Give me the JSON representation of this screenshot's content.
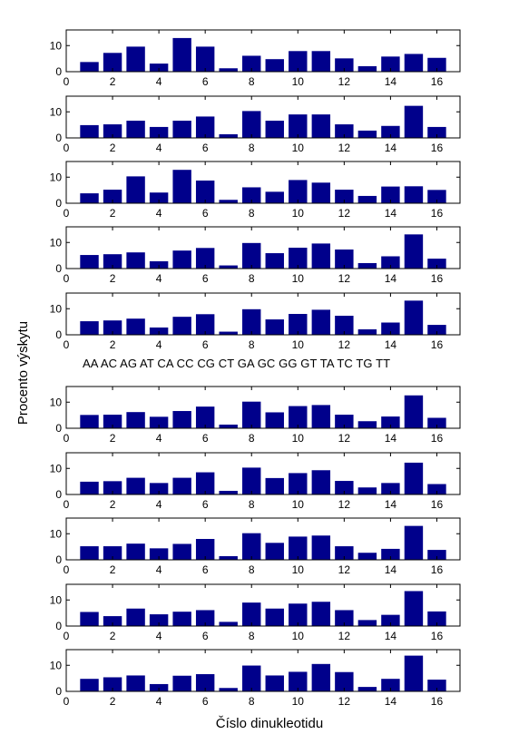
{
  "ylabel": "Procento  výskytu",
  "xlabel": "Číslo dinukleotidu",
  "dinucleotide_labels": "AA AC AG AT CA CC CG CT GA GC GG GT TA TC TG TT",
  "bar_color": "#00008b",
  "chart_data": [
    {
      "type": "bar",
      "x": [
        1,
        2,
        3,
        4,
        5,
        6,
        7,
        8,
        9,
        10,
        11,
        12,
        13,
        14,
        15,
        16
      ],
      "values": [
        3.7,
        7.2,
        9.6,
        3.1,
        12.9,
        9.6,
        1.3,
        6.1,
        4.8,
        7.9,
        7.9,
        5.1,
        2.1,
        5.8,
        6.8,
        5.3
      ],
      "ylim": [
        0,
        16
      ],
      "xlim": [
        0,
        17
      ],
      "xticks": [
        0,
        2,
        4,
        6,
        8,
        10,
        12,
        14,
        16
      ],
      "yticks": [
        0,
        10
      ]
    },
    {
      "type": "bar",
      "x": [
        1,
        2,
        3,
        4,
        5,
        6,
        7,
        8,
        9,
        10,
        11,
        12,
        13,
        14,
        15,
        16
      ],
      "values": [
        4.9,
        5.2,
        6.6,
        4.2,
        6.6,
        8.2,
        1.4,
        10.3,
        6.6,
        9.0,
        9.0,
        5.2,
        2.8,
        4.6,
        12.3,
        4.2
      ],
      "ylim": [
        0,
        16
      ],
      "xlim": [
        0,
        17
      ],
      "xticks": [
        0,
        2,
        4,
        6,
        8,
        10,
        12,
        14,
        16
      ],
      "yticks": [
        0,
        10
      ]
    },
    {
      "type": "bar",
      "x": [
        1,
        2,
        3,
        4,
        5,
        6,
        7,
        8,
        9,
        10,
        11,
        12,
        13,
        14,
        15,
        16
      ],
      "values": [
        3.8,
        5.2,
        10.3,
        4.1,
        12.8,
        8.7,
        1.3,
        6.1,
        4.4,
        8.9,
        7.9,
        5.2,
        2.8,
        6.4,
        6.5,
        5.1
      ],
      "ylim": [
        0,
        16
      ],
      "xlim": [
        0,
        17
      ],
      "xticks": [
        0,
        2,
        4,
        6,
        8,
        10,
        12,
        14,
        16
      ],
      "yticks": [
        0,
        10
      ]
    },
    {
      "type": "bar",
      "x": [
        1,
        2,
        3,
        4,
        5,
        6,
        7,
        8,
        9,
        10,
        11,
        12,
        13,
        14,
        15,
        16
      ],
      "values": [
        5.2,
        5.5,
        6.2,
        2.8,
        6.9,
        7.9,
        1.2,
        9.8,
        5.9,
        8.0,
        9.6,
        7.3,
        2.1,
        4.7,
        13.1,
        3.8
      ],
      "ylim": [
        0,
        16
      ],
      "xlim": [
        0,
        17
      ],
      "xticks": [
        0,
        2,
        4,
        6,
        8,
        10,
        12,
        14,
        16
      ],
      "yticks": [
        0,
        10
      ]
    },
    {
      "type": "bar",
      "x": [
        1,
        2,
        3,
        4,
        5,
        6,
        7,
        8,
        9,
        10,
        11,
        12,
        13,
        14,
        15,
        16
      ],
      "values": [
        5.2,
        5.5,
        6.2,
        2.8,
        6.9,
        7.9,
        1.2,
        9.8,
        5.9,
        8.0,
        9.6,
        7.3,
        2.1,
        4.7,
        13.1,
        3.8
      ],
      "ylim": [
        0,
        16
      ],
      "xlim": [
        0,
        17
      ],
      "xticks": [
        0,
        2,
        4,
        6,
        8,
        10,
        12,
        14,
        16
      ],
      "yticks": [
        0,
        10
      ]
    },
    {
      "type": "bar",
      "x": [
        1,
        2,
        3,
        4,
        5,
        6,
        7,
        8,
        9,
        10,
        11,
        12,
        13,
        14,
        15,
        16
      ],
      "values": [
        5.1,
        5.2,
        6.2,
        4.4,
        6.6,
        8.3,
        1.4,
        10.2,
        6.1,
        8.5,
        8.9,
        5.2,
        2.7,
        4.5,
        12.6,
        4.0
      ],
      "ylim": [
        0,
        16
      ],
      "xlim": [
        0,
        17
      ],
      "xticks": [
        0,
        2,
        4,
        6,
        8,
        10,
        12,
        14,
        16
      ],
      "yticks": [
        0,
        10
      ]
    },
    {
      "type": "bar",
      "x": [
        1,
        2,
        3,
        4,
        5,
        6,
        7,
        8,
        9,
        10,
        11,
        12,
        13,
        14,
        15,
        16
      ],
      "values": [
        4.9,
        5.1,
        6.4,
        4.4,
        6.4,
        8.5,
        1.4,
        10.3,
        6.3,
        8.2,
        9.3,
        5.2,
        2.7,
        4.4,
        12.2,
        4.0
      ],
      "ylim": [
        0,
        16
      ],
      "xlim": [
        0,
        17
      ],
      "xticks": [
        0,
        2,
        4,
        6,
        8,
        10,
        12,
        14,
        16
      ],
      "yticks": [
        0,
        10
      ]
    },
    {
      "type": "bar",
      "x": [
        1,
        2,
        3,
        4,
        5,
        6,
        7,
        8,
        9,
        10,
        11,
        12,
        13,
        14,
        15,
        16
      ],
      "values": [
        5.2,
        5.2,
        6.2,
        4.4,
        6.1,
        8.0,
        1.4,
        10.2,
        6.5,
        8.9,
        9.3,
        5.2,
        2.7,
        4.2,
        13.0,
        3.8
      ],
      "ylim": [
        0,
        16
      ],
      "xlim": [
        0,
        17
      ],
      "xticks": [
        0,
        2,
        4,
        6,
        8,
        10,
        12,
        14,
        16
      ],
      "yticks": [
        0,
        10
      ]
    },
    {
      "type": "bar",
      "x": [
        1,
        2,
        3,
        4,
        5,
        6,
        7,
        8,
        9,
        10,
        11,
        12,
        13,
        14,
        15,
        16
      ],
      "values": [
        5.4,
        3.8,
        6.7,
        4.5,
        5.5,
        6.1,
        1.6,
        9.0,
        6.7,
        8.6,
        9.3,
        6.1,
        2.3,
        4.3,
        13.4,
        5.6
      ],
      "ylim": [
        0,
        16
      ],
      "xlim": [
        0,
        17
      ],
      "xticks": [
        0,
        2,
        4,
        6,
        8,
        10,
        12,
        14,
        16
      ],
      "yticks": [
        0,
        10
      ]
    },
    {
      "type": "bar",
      "x": [
        1,
        2,
        3,
        4,
        5,
        6,
        7,
        8,
        9,
        10,
        11,
        12,
        13,
        14,
        15,
        16
      ],
      "values": [
        4.8,
        5.4,
        6.1,
        2.8,
        6.0,
        6.6,
        1.3,
        9.9,
        6.1,
        7.5,
        10.5,
        7.4,
        1.7,
        4.8,
        13.7,
        4.5
      ],
      "ylim": [
        0,
        16
      ],
      "xlim": [
        0,
        17
      ],
      "xticks": [
        0,
        2,
        4,
        6,
        8,
        10,
        12,
        14,
        16
      ],
      "yticks": [
        0,
        10
      ]
    }
  ]
}
